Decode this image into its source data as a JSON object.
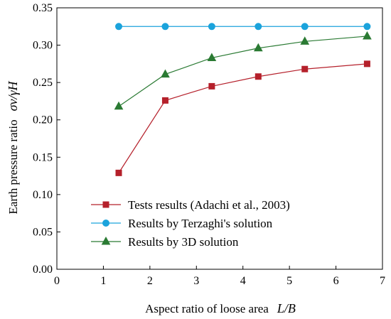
{
  "chart_data": {
    "type": "line",
    "x": [
      1.33,
      2.33,
      3.33,
      4.33,
      5.33,
      6.67
    ],
    "series": [
      {
        "name": "Tests results (Adachi et al., 2003)",
        "color": "#b5202b",
        "marker": "square",
        "values": [
          0.129,
          0.226,
          0.245,
          0.258,
          0.268,
          0.275
        ]
      },
      {
        "name": "Results by Terzaghi's solution",
        "color": "#1ba3dc",
        "marker": "circle",
        "values": [
          0.325,
          0.325,
          0.325,
          0.325,
          0.325,
          0.325
        ]
      },
      {
        "name": "Results by 3D solution",
        "color": "#2a7a33",
        "marker": "triangle",
        "values": [
          0.218,
          0.261,
          0.283,
          0.296,
          0.305,
          0.312
        ]
      }
    ],
    "xlim": [
      0,
      7
    ],
    "ylim": [
      0,
      0.35
    ],
    "xticks": [
      "0",
      "1",
      "2",
      "3",
      "4",
      "5",
      "6",
      "7"
    ],
    "yticks": [
      "0.00",
      "0.05",
      "0.10",
      "0.15",
      "0.20",
      "0.25",
      "0.30",
      "0.35"
    ],
    "xlabel": "Aspect ratio of loose area",
    "xlabel_math": "L/B",
    "ylabel": "Earth pressure ratio",
    "ylabel_math": "σv/γH",
    "grid": false,
    "legend_position": "bottom-right"
  }
}
